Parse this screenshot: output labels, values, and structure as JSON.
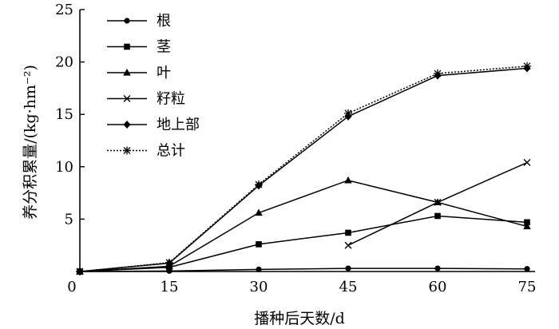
{
  "chart_data": {
    "type": "line",
    "title": "",
    "xlabel": "播种后天数/d",
    "ylabel": "养分积累量/(kg·hm⁻²)",
    "xlim": [
      0,
      75
    ],
    "ylim": [
      0,
      25
    ],
    "xticks": [
      0,
      15,
      30,
      45,
      60,
      75
    ],
    "yticks": [
      5,
      10,
      15,
      20,
      25
    ],
    "x_tick_labels": [
      "0",
      "15",
      "30",
      "45",
      "60",
      "75"
    ],
    "y_tick_labels": [
      "5",
      "10",
      "15",
      "20",
      "25"
    ],
    "grid": false,
    "legend_position": "top-left",
    "series": [
      {
        "name": "根",
        "marker": "circle",
        "dash": "solid",
        "x": [
          0,
          15,
          30,
          45,
          60,
          75
        ],
        "y": [
          0.0,
          0.05,
          0.2,
          0.3,
          0.3,
          0.25
        ]
      },
      {
        "name": "茎",
        "marker": "square",
        "dash": "solid",
        "x": [
          0,
          15,
          30,
          45,
          60,
          75
        ],
        "y": [
          0.0,
          0.4,
          2.6,
          3.7,
          5.3,
          4.7
        ]
      },
      {
        "name": "叶",
        "marker": "triangle",
        "dash": "solid",
        "x": [
          0,
          15,
          30,
          45,
          60,
          75
        ],
        "y": [
          0.0,
          0.5,
          5.6,
          8.7,
          6.6,
          4.3
        ]
      },
      {
        "name": "籽粒",
        "marker": "x",
        "dash": "solid",
        "x": [
          45,
          60,
          75
        ],
        "y": [
          2.5,
          6.6,
          10.4
        ]
      },
      {
        "name": "地上部",
        "marker": "diamond",
        "dash": "solid",
        "x": [
          0,
          15,
          30,
          45,
          60,
          75
        ],
        "y": [
          0.0,
          0.8,
          8.2,
          14.8,
          18.7,
          19.4
        ]
      },
      {
        "name": "总计",
        "marker": "asterisk",
        "dash": "dotted",
        "x": [
          0,
          15,
          30,
          45,
          60,
          75
        ],
        "y": [
          0.0,
          0.85,
          8.3,
          15.1,
          18.9,
          19.6
        ]
      }
    ]
  }
}
